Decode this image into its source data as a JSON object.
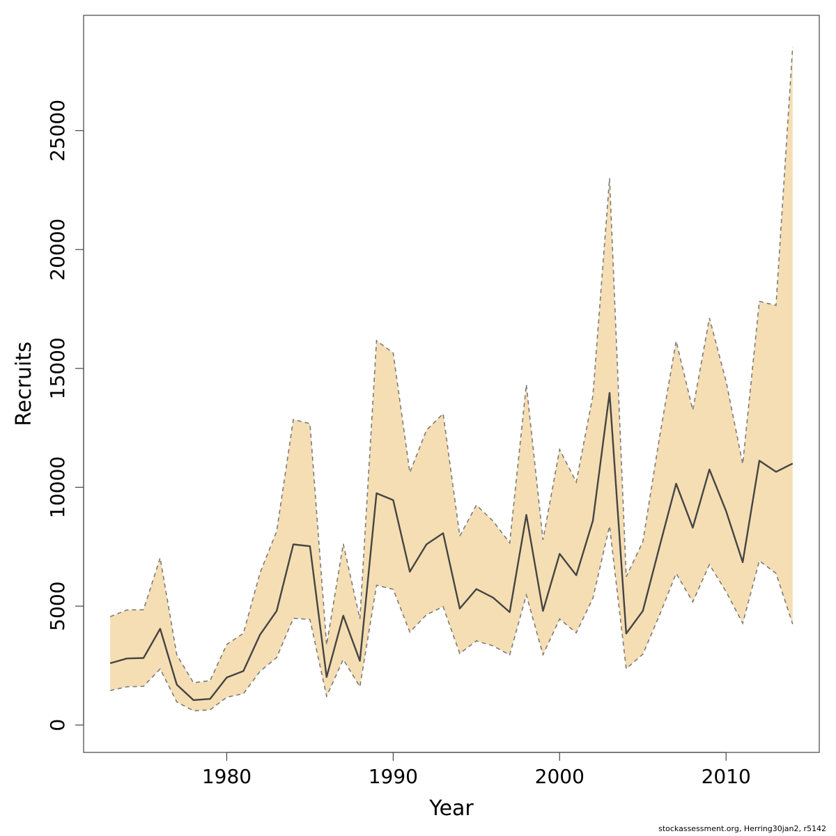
{
  "chart_data": {
    "type": "line",
    "title": "",
    "xlabel": "Year",
    "ylabel": "Recruits",
    "xlim": [
      1971.4,
      2015.6
    ],
    "ylim": [
      -1150,
      29850
    ],
    "xticks": [
      1980,
      1990,
      2000,
      2010
    ],
    "yticks": [
      0,
      5000,
      10000,
      15000,
      20000,
      25000
    ],
    "grid": false,
    "legend": "none",
    "colors": {
      "band": "#f5deb3",
      "line": "#444444",
      "bound": "#7a7a7a",
      "axis": "#444444"
    },
    "x": [
      1973,
      1974,
      1975,
      1976,
      1977,
      1978,
      1979,
      1980,
      1981,
      1982,
      1983,
      1984,
      1985,
      1986,
      1987,
      1988,
      1989,
      1990,
      1991,
      1992,
      1993,
      1994,
      1995,
      1996,
      1997,
      1998,
      1999,
      2000,
      2001,
      2002,
      2003,
      2004,
      2005,
      2006,
      2007,
      2008,
      2009,
      2010,
      2011,
      2012,
      2013,
      2014
    ],
    "series": [
      {
        "role": "estimate",
        "values": [
          2600,
          2800,
          2820,
          4050,
          1700,
          1050,
          1100,
          2000,
          2270,
          3800,
          4800,
          7600,
          7520,
          2020,
          4600,
          2700,
          9750,
          9460,
          6450,
          7600,
          8070,
          4900,
          5720,
          5360,
          4750,
          8840,
          4800,
          7200,
          6300,
          8600,
          13970,
          3850,
          4800,
          7500,
          10150,
          8300,
          10750,
          9000,
          6850,
          11120,
          10650,
          11000
        ]
      },
      {
        "role": "upper",
        "values": [
          4560,
          4840,
          4850,
          7030,
          2950,
          1780,
          1870,
          3390,
          3860,
          6400,
          8150,
          12850,
          12680,
          3370,
          7620,
          4470,
          16170,
          15650,
          10620,
          12400,
          13100,
          7950,
          9250,
          8580,
          7660,
          14320,
          7790,
          11590,
          10220,
          13860,
          23000,
          6240,
          7710,
          12100,
          16150,
          13250,
          17120,
          14460,
          10980,
          17820,
          17650,
          28520
        ]
      },
      {
        "role": "lower",
        "values": [
          1450,
          1610,
          1630,
          2360,
          970,
          600,
          640,
          1170,
          1320,
          2260,
          2840,
          4490,
          4440,
          1210,
          2760,
          1610,
          5880,
          5710,
          3910,
          4640,
          4980,
          3010,
          3540,
          3330,
          2950,
          5470,
          2960,
          4460,
          3880,
          5340,
          8370,
          2370,
          2980,
          4620,
          6380,
          5180,
          6750,
          5610,
          4280,
          6910,
          6380,
          4250
        ]
      }
    ]
  },
  "footnote": "stockassessment.org, Herring30jan2, r5142"
}
